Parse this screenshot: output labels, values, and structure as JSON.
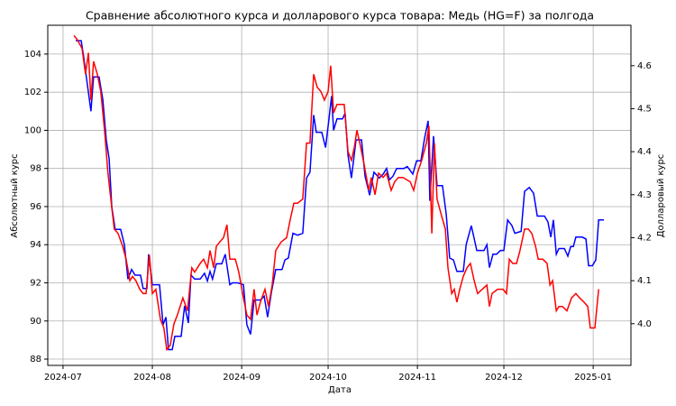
{
  "chart_data": {
    "type": "line",
    "title": "Сравнение абсолютного курса и долларового курса товара: Медь (HG=F) за полгода",
    "xlabel": "Дата",
    "ylabel": "Абсолютный курс",
    "y2label": "Долларовый курс",
    "ylabel_color": "#0000ff",
    "y2label_color": "#ff0000",
    "grid": true,
    "xlim": [
      -5.3,
      197.1
    ],
    "xticks": [
      {
        "value": 0,
        "label": "2024-07"
      },
      {
        "value": 31,
        "label": "2024-08"
      },
      {
        "value": 62,
        "label": "2024-09"
      },
      {
        "value": 92,
        "label": "2024-10"
      },
      {
        "value": 123,
        "label": "2024-11"
      },
      {
        "value": 153,
        "label": "2024-12"
      },
      {
        "value": 184,
        "label": "2025-01"
      }
    ],
    "ylim": [
      87.67,
      105.51
    ],
    "yticks": [
      88,
      90,
      92,
      94,
      96,
      98,
      100,
      102,
      104
    ],
    "y2lim": [
      3.903,
      4.694
    ],
    "y2ticks": [
      {
        "value": 4,
        "label": "4.0"
      },
      4.1,
      4.2,
      4.3,
      4.4,
      4.5,
      4.6
    ],
    "series": [
      {
        "color": "#0000ff",
        "axis": "y",
        "x": [
          4.4,
          6.3,
          7.2,
          8.1,
          9.7,
          10.6,
          12.5,
          13.8,
          15.0,
          16.0,
          16.9,
          18.1,
          20.0,
          21.3,
          22.5,
          23.8,
          25.0,
          26.9,
          27.8,
          29.1,
          29.7,
          31.0,
          33.5,
          34.7,
          35.7,
          36.6,
          37.9,
          38.8,
          41.0,
          42.2,
          43.5,
          44.4,
          45.7,
          47.6,
          49.1,
          50.1,
          51.0,
          51.9,
          53.2,
          55.1,
          56.3,
          57.9,
          58.8,
          60.7,
          62.6,
          63.8,
          65.1,
          66.3,
          68.5,
          69.8,
          71.0,
          72.3,
          73.8,
          76.0,
          77.0,
          78.2,
          79.8,
          81.4,
          83.2,
          84.5,
          85.7,
          87.0,
          87.9,
          89.8,
          91.1,
          92.3,
          93.2,
          93.9,
          95.1,
          97.0,
          97.9,
          98.9,
          100.1,
          101.7,
          103.6,
          104.8,
          106.4,
          107.9,
          109.8,
          111.1,
          112.3,
          113.3,
          114.5,
          115.8,
          118.3,
          119.5,
          121.4,
          122.7,
          124.2,
          125.5,
          126.7,
          127.3,
          128.6,
          129.8,
          131.7,
          133.0,
          134.2,
          135.5,
          136.7,
          138.9,
          139.9,
          141.7,
          143.6,
          146.1,
          147.1,
          148.0,
          149.2,
          150.5,
          151.8,
          153.0,
          154.3,
          155.8,
          156.8,
          159.0,
          160.2,
          161.8,
          163.3,
          164.6,
          167.1,
          168.3,
          169.3,
          170.2,
          171.2,
          172.1,
          174.0,
          175.2,
          176.2,
          177.1,
          178.0,
          180.2,
          181.5,
          182.4,
          183.7,
          184.9,
          185.9,
          187.7
        ],
        "values": [
          104.7,
          104.7,
          103.8,
          102.8,
          101,
          102.8,
          102.8,
          101.6,
          99.5,
          98.5,
          96,
          94.8,
          94.8,
          94,
          92.2,
          92.7,
          92.4,
          92.4,
          91.7,
          91.7,
          93.5,
          91.9,
          91.9,
          89.8,
          90.2,
          88.5,
          88.5,
          89.2,
          89.2,
          90.8,
          89.9,
          92.4,
          92.2,
          92.2,
          92.5,
          92.1,
          92.6,
          92.2,
          93,
          93,
          93.5,
          91.9,
          92,
          92,
          91.9,
          89.8,
          89.3,
          91.1,
          91.1,
          91.3,
          90.2,
          91.5,
          92.7,
          92.7,
          93.2,
          93.3,
          94.6,
          94.5,
          94.6,
          97.5,
          97.8,
          100.8,
          99.9,
          99.9,
          99.1,
          100.6,
          101.8,
          100,
          100.6,
          100.6,
          100.9,
          98.7,
          97.5,
          99.5,
          99.5,
          97.6,
          96.6,
          97.8,
          97.5,
          97.7,
          98,
          97.4,
          97.6,
          98,
          98,
          98.1,
          97.7,
          98.4,
          98.4,
          99.6,
          100.5,
          96.3,
          99.7,
          97.1,
          97.1,
          95.6,
          93.3,
          93.2,
          92.6,
          92.6,
          94,
          95,
          93.7,
          93.7,
          94,
          92.8,
          93.5,
          93.5,
          93.7,
          93.7,
          95.3,
          95,
          94.6,
          94.7,
          96.8,
          97,
          96.7,
          95.5,
          95.5,
          95.2,
          94.4,
          95.3,
          93.5,
          93.8,
          93.8,
          93.4,
          93.9,
          93.9,
          94.4,
          94.4,
          94.3,
          92.9,
          92.9,
          93.2,
          95.3,
          95.3
        ]
      },
      {
        "color": "#ff0000",
        "axis": "y2",
        "x": [
          3.8,
          5.0,
          6.6,
          7.8,
          8.8,
          9.7,
          10.6,
          11.9,
          13.1,
          14.4,
          15.6,
          16.9,
          17.8,
          19.1,
          20.7,
          21.9,
          23.2,
          24.1,
          25.3,
          26.6,
          27.8,
          28.8,
          30.0,
          31.0,
          32.2,
          33.8,
          35.0,
          36.0,
          37.2,
          38.5,
          39.7,
          41.6,
          43.2,
          44.7,
          45.7,
          47.6,
          48.8,
          50.1,
          51.0,
          52.3,
          53.2,
          54.4,
          55.7,
          56.9,
          57.9,
          59.8,
          61.0,
          62.6,
          63.8,
          65.1,
          66.3,
          67.3,
          68.5,
          70.1,
          71.3,
          72.6,
          73.8,
          75.7,
          77.6,
          78.8,
          80.1,
          81.4,
          83.2,
          84.5,
          85.7,
          87.0,
          88.2,
          89.5,
          90.7,
          92.0,
          92.9,
          93.9,
          95.1,
          97.6,
          98.9,
          100.1,
          101.1,
          102.0,
          103.3,
          104.5,
          106.1,
          107.0,
          108.3,
          109.5,
          111.1,
          112.3,
          113.9,
          115.1,
          116.4,
          118.0,
          120.5,
          121.7,
          123.0,
          124.5,
          126.1,
          127.0,
          128.0,
          128.9,
          129.8,
          131.4,
          132.7,
          133.6,
          134.9,
          135.8,
          136.7,
          137.7,
          138.9,
          140.2,
          141.4,
          142.7,
          143.9,
          145.5,
          147.1,
          148.0,
          148.9,
          150.8,
          152.7,
          153.9,
          154.9,
          156.1,
          157.4,
          158.6,
          160.2,
          161.5,
          162.7,
          164.0,
          164.9,
          166.5,
          168.0,
          169.0,
          169.9,
          171.2,
          172.1,
          173.3,
          174.9,
          176.5,
          178.0,
          179.3,
          180.8,
          182.1,
          183.0,
          184.6,
          185.9
        ],
        "values": [
          4.67,
          4.66,
          4.64,
          4.58,
          4.63,
          4.52,
          4.61,
          4.58,
          4.54,
          4.45,
          4.35,
          4.27,
          4.22,
          4.21,
          4.18,
          4.15,
          4.1,
          4.11,
          4.1,
          4.08,
          4.07,
          4.07,
          4.16,
          4.07,
          4.08,
          4.01,
          3.99,
          3.94,
          3.95,
          4.0,
          4.02,
          4.06,
          4.03,
          4.13,
          4.12,
          4.14,
          4.15,
          4.13,
          4.17,
          4.13,
          4.18,
          4.19,
          4.2,
          4.23,
          4.15,
          4.15,
          4.12,
          4.06,
          4.02,
          4.01,
          4.08,
          4.02,
          4.05,
          4.08,
          4.04,
          4.09,
          4.17,
          4.19,
          4.2,
          4.24,
          4.28,
          4.28,
          4.29,
          4.42,
          4.42,
          4.58,
          4.55,
          4.54,
          4.52,
          4.54,
          4.6,
          4.49,
          4.51,
          4.51,
          4.4,
          4.38,
          4.41,
          4.45,
          4.41,
          4.37,
          4.31,
          4.34,
          4.3,
          4.35,
          4.34,
          4.35,
          4.31,
          4.33,
          4.34,
          4.34,
          4.33,
          4.31,
          4.35,
          4.38,
          4.42,
          4.46,
          4.21,
          4.42,
          4.29,
          4.25,
          4.22,
          4.13,
          4.07,
          4.08,
          4.05,
          4.08,
          4.11,
          4.13,
          4.14,
          4.1,
          4.07,
          4.08,
          4.09,
          4.04,
          4.07,
          4.08,
          4.08,
          4.07,
          4.15,
          4.14,
          4.14,
          4.17,
          4.22,
          4.22,
          4.21,
          4.18,
          4.15,
          4.15,
          4.14,
          4.09,
          4.1,
          4.03,
          4.04,
          4.04,
          4.03,
          4.06,
          4.07,
          4.06,
          4.05,
          4.04,
          3.99,
          3.99,
          4.08
        ]
      }
    ]
  }
}
